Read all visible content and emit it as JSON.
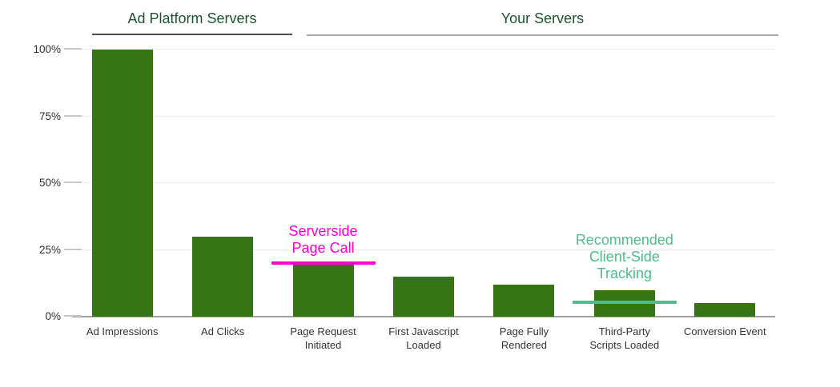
{
  "header": {
    "group_ad_platform": "Ad Platform Servers",
    "group_your_servers": "Your Servers"
  },
  "chart_data": {
    "type": "bar",
    "title": "",
    "categories": [
      "Ad Impressions",
      "Ad Clicks",
      "Page Request\nInitiated",
      "First Javascript\nLoaded",
      "Page Fully\nRendered",
      "Third-Party\nScripts Loaded",
      "Conversion Event"
    ],
    "values": [
      100,
      30,
      20,
      15,
      12,
      10,
      5
    ],
    "value_unit": "percent",
    "xlabel": "",
    "ylabel": "",
    "ylim": [
      0,
      100
    ],
    "y_ticks": [
      0,
      25,
      50,
      75,
      100
    ],
    "y_tick_labels": [
      "0%",
      "25%",
      "50%",
      "75%",
      "100%"
    ],
    "grid": true,
    "legend": "none",
    "bar_color": "#377413",
    "group_spans": [
      {
        "label": "Ad Platform Servers",
        "category_start": 0,
        "category_end": 1
      },
      {
        "label": "Your Servers",
        "category_start": 2,
        "category_end": 6
      }
    ],
    "annotations": [
      {
        "id": "serverside-page-call",
        "text": "Serverside\nPage Call",
        "color": "#ff00cc",
        "category_index": 2,
        "line_value": 20,
        "text_bottom_value": 22.5
      },
      {
        "id": "recommended-client-side-tracking",
        "text": "Recommended\nClient-Side\nTracking",
        "color": "#4fbc8b",
        "category_index": 5,
        "line_value": 5.5,
        "text_bottom_value": 13
      }
    ]
  },
  "colors": {
    "bar": "#377413",
    "heading_text": "#1e5232",
    "axis_label": "#2e2e2e",
    "gridline": "#ebebeb",
    "axis_line": "#a0a0a0",
    "group1_underline": "#4d4d4d",
    "group2_underline": "#a9a9a9",
    "annotation_serverside": "#ff00cc",
    "annotation_recommended": "#4fbc8b"
  }
}
